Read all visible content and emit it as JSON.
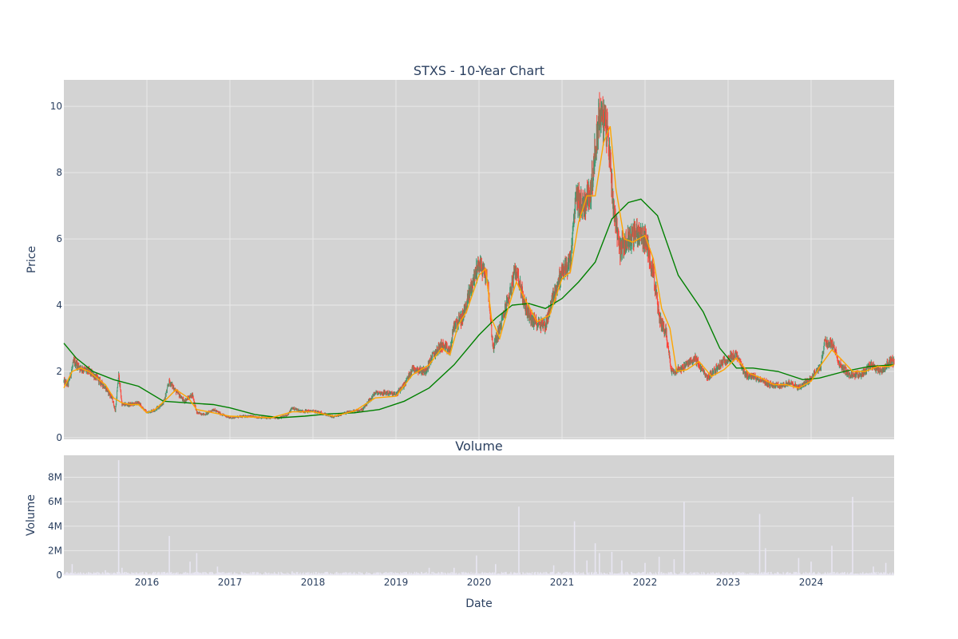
{
  "chart_data": [
    {
      "type": "candlestick",
      "title": "STXS - 10-Year Chart",
      "ylabel": "Price",
      "ylim": [
        -0.05,
        10.8
      ],
      "yticks": [
        0,
        2,
        4,
        6,
        8,
        10
      ],
      "xlim": [
        2015.0,
        2025.0
      ],
      "xticks": [
        {
          "v": 2016,
          "label": "2016"
        },
        {
          "v": 2017,
          "label": "2017"
        },
        {
          "v": 2018,
          "label": "2018"
        },
        {
          "v": 2019,
          "label": "2019"
        },
        {
          "v": 2020,
          "label": "2020"
        },
        {
          "v": 2021,
          "label": "2021"
        },
        {
          "v": 2022,
          "label": "2022"
        },
        {
          "v": 2023,
          "label": "2023"
        },
        {
          "v": 2024,
          "label": "2024"
        }
      ],
      "grid": true,
      "colors": {
        "up": "#3d9970",
        "down": "#ff4136",
        "short_ma": "#ffa500",
        "long_ma": "#008000",
        "plot_bg": "#d3d3d3",
        "grid": "#e8e8e8"
      },
      "price_path": [
        [
          2015.0,
          1.7
        ],
        [
          2015.05,
          1.6
        ],
        [
          2015.12,
          2.3
        ],
        [
          2015.2,
          2.1
        ],
        [
          2015.3,
          2.0
        ],
        [
          2015.4,
          1.8
        ],
        [
          2015.5,
          1.5
        ],
        [
          2015.58,
          1.2
        ],
        [
          2015.62,
          0.8
        ],
        [
          2015.66,
          1.9
        ],
        [
          2015.7,
          1.0
        ],
        [
          2015.8,
          1.0
        ],
        [
          2015.9,
          1.05
        ],
        [
          2016.0,
          0.75
        ],
        [
          2016.1,
          0.85
        ],
        [
          2016.2,
          1.05
        ],
        [
          2016.27,
          1.7
        ],
        [
          2016.35,
          1.4
        ],
        [
          2016.45,
          1.1
        ],
        [
          2016.55,
          1.3
        ],
        [
          2016.6,
          0.75
        ],
        [
          2016.7,
          0.7
        ],
        [
          2016.8,
          0.85
        ],
        [
          2016.9,
          0.7
        ],
        [
          2017.0,
          0.6
        ],
        [
          2017.2,
          0.65
        ],
        [
          2017.4,
          0.6
        ],
        [
          2017.6,
          0.6
        ],
        [
          2017.7,
          0.7
        ],
        [
          2017.75,
          0.9
        ],
        [
          2017.85,
          0.8
        ],
        [
          2018.0,
          0.8
        ],
        [
          2018.1,
          0.75
        ],
        [
          2018.25,
          0.62
        ],
        [
          2018.4,
          0.75
        ],
        [
          2018.6,
          0.85
        ],
        [
          2018.75,
          1.35
        ],
        [
          2018.9,
          1.35
        ],
        [
          2019.0,
          1.3
        ],
        [
          2019.1,
          1.6
        ],
        [
          2019.2,
          2.1
        ],
        [
          2019.35,
          2.0
        ],
        [
          2019.45,
          2.5
        ],
        [
          2019.55,
          2.8
        ],
        [
          2019.65,
          2.6
        ],
        [
          2019.7,
          3.4
        ],
        [
          2019.8,
          3.6
        ],
        [
          2019.9,
          4.5
        ],
        [
          2020.0,
          5.3
        ],
        [
          2020.1,
          4.8
        ],
        [
          2020.17,
          2.7
        ],
        [
          2020.25,
          3.3
        ],
        [
          2020.33,
          4.0
        ],
        [
          2020.45,
          5.1
        ],
        [
          2020.55,
          4.0
        ],
        [
          2020.65,
          3.5
        ],
        [
          2020.8,
          3.4
        ],
        [
          2020.9,
          4.3
        ],
        [
          2021.0,
          5.0
        ],
        [
          2021.1,
          5.3
        ],
        [
          2021.17,
          7.3
        ],
        [
          2021.25,
          7.0
        ],
        [
          2021.35,
          7.5
        ],
        [
          2021.45,
          9.8
        ],
        [
          2021.55,
          9.3
        ],
        [
          2021.62,
          7.0
        ],
        [
          2021.7,
          5.7
        ],
        [
          2021.8,
          6.0
        ],
        [
          2021.9,
          6.2
        ],
        [
          2022.0,
          6.0
        ],
        [
          2022.1,
          5.0
        ],
        [
          2022.17,
          3.6
        ],
        [
          2022.25,
          3.2
        ],
        [
          2022.32,
          2.0
        ],
        [
          2022.45,
          2.1
        ],
        [
          2022.6,
          2.4
        ],
        [
          2022.75,
          1.8
        ],
        [
          2022.9,
          2.2
        ],
        [
          2023.0,
          2.4
        ],
        [
          2023.1,
          2.5
        ],
        [
          2023.2,
          1.9
        ],
        [
          2023.35,
          1.8
        ],
        [
          2023.5,
          1.6
        ],
        [
          2023.65,
          1.55
        ],
        [
          2023.75,
          1.7
        ],
        [
          2023.85,
          1.5
        ],
        [
          2024.0,
          1.8
        ],
        [
          2024.12,
          2.2
        ],
        [
          2024.16,
          2.9
        ],
        [
          2024.26,
          2.8
        ],
        [
          2024.35,
          2.2
        ],
        [
          2024.45,
          1.9
        ],
        [
          2024.6,
          1.9
        ],
        [
          2024.72,
          2.2
        ],
        [
          2024.85,
          2.0
        ],
        [
          2024.95,
          2.3
        ],
        [
          2025.0,
          2.3
        ]
      ],
      "short_ma": [
        [
          2015.0,
          1.5
        ],
        [
          2015.1,
          2.0
        ],
        [
          2015.2,
          2.1
        ],
        [
          2015.3,
          2.0
        ],
        [
          2015.4,
          1.8
        ],
        [
          2015.5,
          1.6
        ],
        [
          2015.6,
          1.2
        ],
        [
          2015.7,
          1.05
        ],
        [
          2015.8,
          1.0
        ],
        [
          2015.9,
          1.0
        ],
        [
          2016.0,
          0.75
        ],
        [
          2016.1,
          0.85
        ],
        [
          2016.25,
          1.2
        ],
        [
          2016.35,
          1.45
        ],
        [
          2016.5,
          1.2
        ],
        [
          2016.6,
          0.85
        ],
        [
          2016.8,
          0.75
        ],
        [
          2017.0,
          0.65
        ],
        [
          2017.5,
          0.6
        ],
        [
          2017.75,
          0.78
        ],
        [
          2018.0,
          0.78
        ],
        [
          2018.25,
          0.65
        ],
        [
          2018.5,
          0.8
        ],
        [
          2018.75,
          1.2
        ],
        [
          2019.0,
          1.25
        ],
        [
          2019.2,
          1.9
        ],
        [
          2019.4,
          2.2
        ],
        [
          2019.55,
          2.7
        ],
        [
          2019.65,
          2.5
        ],
        [
          2019.75,
          3.4
        ],
        [
          2019.85,
          3.8
        ],
        [
          2020.0,
          4.9
        ],
        [
          2020.08,
          5.1
        ],
        [
          2020.15,
          3.6
        ],
        [
          2020.25,
          3.0
        ],
        [
          2020.35,
          3.9
        ],
        [
          2020.45,
          4.7
        ],
        [
          2020.55,
          4.2
        ],
        [
          2020.7,
          3.5
        ],
        [
          2020.85,
          3.7
        ],
        [
          2021.0,
          4.8
        ],
        [
          2021.1,
          5.0
        ],
        [
          2021.2,
          6.5
        ],
        [
          2021.3,
          7.3
        ],
        [
          2021.4,
          7.3
        ],
        [
          2021.5,
          8.9
        ],
        [
          2021.58,
          9.4
        ],
        [
          2021.65,
          7.5
        ],
        [
          2021.75,
          6.0
        ],
        [
          2021.85,
          5.9
        ],
        [
          2022.0,
          6.1
        ],
        [
          2022.1,
          5.4
        ],
        [
          2022.2,
          3.9
        ],
        [
          2022.3,
          3.3
        ],
        [
          2022.38,
          2.0
        ],
        [
          2022.5,
          2.05
        ],
        [
          2022.65,
          2.3
        ],
        [
          2022.8,
          1.85
        ],
        [
          2022.95,
          2.05
        ],
        [
          2023.1,
          2.4
        ],
        [
          2023.25,
          1.95
        ],
        [
          2023.4,
          1.8
        ],
        [
          2023.55,
          1.6
        ],
        [
          2023.7,
          1.6
        ],
        [
          2023.85,
          1.5
        ],
        [
          2024.0,
          1.7
        ],
        [
          2024.12,
          2.2
        ],
        [
          2024.25,
          2.65
        ],
        [
          2024.35,
          2.4
        ],
        [
          2024.5,
          2.0
        ],
        [
          2024.65,
          2.0
        ],
        [
          2024.8,
          2.15
        ],
        [
          2024.95,
          2.15
        ],
        [
          2025.0,
          2.2
        ]
      ],
      "long_ma": [
        [
          2015.0,
          2.85
        ],
        [
          2015.15,
          2.4
        ],
        [
          2015.35,
          2.0
        ],
        [
          2015.6,
          1.75
        ],
        [
          2015.9,
          1.55
        ],
        [
          2016.2,
          1.1
        ],
        [
          2016.5,
          1.05
        ],
        [
          2016.8,
          1.0
        ],
        [
          2017.0,
          0.9
        ],
        [
          2017.3,
          0.7
        ],
        [
          2017.6,
          0.6
        ],
        [
          2017.9,
          0.65
        ],
        [
          2018.2,
          0.72
        ],
        [
          2018.5,
          0.75
        ],
        [
          2018.8,
          0.85
        ],
        [
          2019.1,
          1.1
        ],
        [
          2019.4,
          1.5
        ],
        [
          2019.7,
          2.2
        ],
        [
          2020.0,
          3.1
        ],
        [
          2020.2,
          3.6
        ],
        [
          2020.4,
          4.0
        ],
        [
          2020.6,
          4.05
        ],
        [
          2020.8,
          3.9
        ],
        [
          2021.0,
          4.2
        ],
        [
          2021.2,
          4.7
        ],
        [
          2021.4,
          5.3
        ],
        [
          2021.6,
          6.6
        ],
        [
          2021.8,
          7.1
        ],
        [
          2021.95,
          7.2
        ],
        [
          2022.15,
          6.7
        ],
        [
          2022.4,
          4.9
        ],
        [
          2022.7,
          3.8
        ],
        [
          2022.9,
          2.7
        ],
        [
          2023.1,
          2.1
        ],
        [
          2023.3,
          2.1
        ],
        [
          2023.6,
          2.0
        ],
        [
          2023.9,
          1.75
        ],
        [
          2024.1,
          1.8
        ],
        [
          2024.4,
          2.0
        ],
        [
          2024.7,
          2.15
        ],
        [
          2025.0,
          2.2
        ]
      ]
    },
    {
      "type": "bar",
      "title": "Volume",
      "xlabel": "Date",
      "ylabel": "Volume",
      "ylim": [
        0,
        9800000
      ],
      "yticks": [
        {
          "v": 0,
          "label": "0"
        },
        {
          "v": 2000000,
          "label": "2M"
        },
        {
          "v": 4000000,
          "label": "4M"
        },
        {
          "v": 6000000,
          "label": "6M"
        },
        {
          "v": 8000000,
          "label": "8M"
        }
      ],
      "xlim": [
        2015.0,
        2025.0
      ],
      "bar_color": "#e8e6f2",
      "baseline_volume": 150000,
      "spikes": [
        [
          2015.1,
          900000
        ],
        [
          2015.5,
          400000
        ],
        [
          2015.66,
          9400000
        ],
        [
          2015.7,
          600000
        ],
        [
          2016.27,
          3200000
        ],
        [
          2016.52,
          1100000
        ],
        [
          2016.6,
          1800000
        ],
        [
          2016.85,
          700000
        ],
        [
          2017.75,
          300000
        ],
        [
          2019.4,
          600000
        ],
        [
          2019.7,
          600000
        ],
        [
          2019.97,
          1600000
        ],
        [
          2020.2,
          900000
        ],
        [
          2020.48,
          5600000
        ],
        [
          2020.9,
          800000
        ],
        [
          2021.15,
          4400000
        ],
        [
          2021.3,
          1200000
        ],
        [
          2021.4,
          2600000
        ],
        [
          2021.45,
          1800000
        ],
        [
          2021.6,
          1900000
        ],
        [
          2021.72,
          1200000
        ],
        [
          2022.0,
          1000000
        ],
        [
          2022.17,
          1500000
        ],
        [
          2022.35,
          1300000
        ],
        [
          2022.47,
          6000000
        ],
        [
          2023.38,
          5000000
        ],
        [
          2023.45,
          2200000
        ],
        [
          2023.85,
          1400000
        ],
        [
          2024.0,
          1100000
        ],
        [
          2024.25,
          2400000
        ],
        [
          2024.5,
          6400000
        ],
        [
          2024.75,
          700000
        ],
        [
          2024.9,
          1000000
        ]
      ]
    }
  ]
}
